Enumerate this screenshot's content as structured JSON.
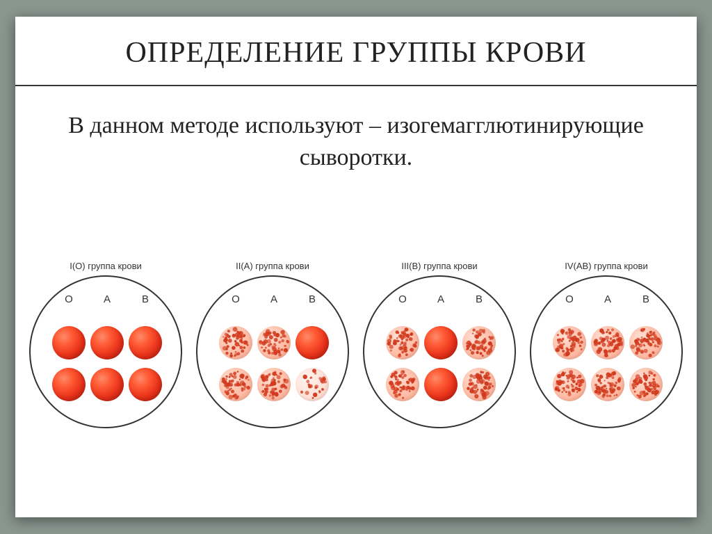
{
  "title": "ОПРЕДЕЛЕНИЕ ГРУППЫ КРОВИ",
  "subtitle": "В данном методе используют – изогемагглютинирующие сыворотки.",
  "column_labels": [
    "O",
    "A",
    "B"
  ],
  "plates": [
    {
      "label": "I(O) группа крови",
      "drops": [
        [
          "smooth",
          "smooth",
          "smooth"
        ],
        [
          "smooth",
          "smooth",
          "smooth"
        ]
      ]
    },
    {
      "label": "II(A) группа крови",
      "drops": [
        [
          "agg",
          "agg",
          "smooth"
        ],
        [
          "agg",
          "agg",
          "agg-light"
        ]
      ]
    },
    {
      "label": "III(B) группа крови",
      "drops": [
        [
          "agg",
          "smooth",
          "agg"
        ],
        [
          "agg",
          "smooth",
          "agg"
        ]
      ]
    },
    {
      "label": "IV(AB) группа крови",
      "drops": [
        [
          "agg",
          "agg",
          "agg"
        ],
        [
          "agg",
          "agg",
          "agg"
        ]
      ]
    }
  ],
  "colors": {
    "slide_bg": "#ffffff",
    "page_bg": "#8a9690",
    "title_color": "#222222",
    "border_color": "#333333",
    "smooth_center": "#ff8a6a",
    "smooth_mid": "#e8321a",
    "smooth_edge": "#c11c0f",
    "agg_bg_light": "#ffe0d4",
    "agg_bg_mid": "#ffc5b0",
    "agg_dot": "#d13a1e"
  },
  "typography": {
    "title_fontsize": 42,
    "subtitle_fontsize": 34,
    "plate_label_fontsize": 13,
    "col_label_fontsize": 15,
    "font_family_title": "Georgia",
    "font_family_labels": "Arial"
  },
  "layout": {
    "slide_width": 980,
    "slide_height": 720,
    "plate_diameter": 220,
    "drop_diameter": 48,
    "drop_cols_x": [
      55,
      110,
      165
    ],
    "drop_rows_y": [
      95,
      155
    ]
  }
}
